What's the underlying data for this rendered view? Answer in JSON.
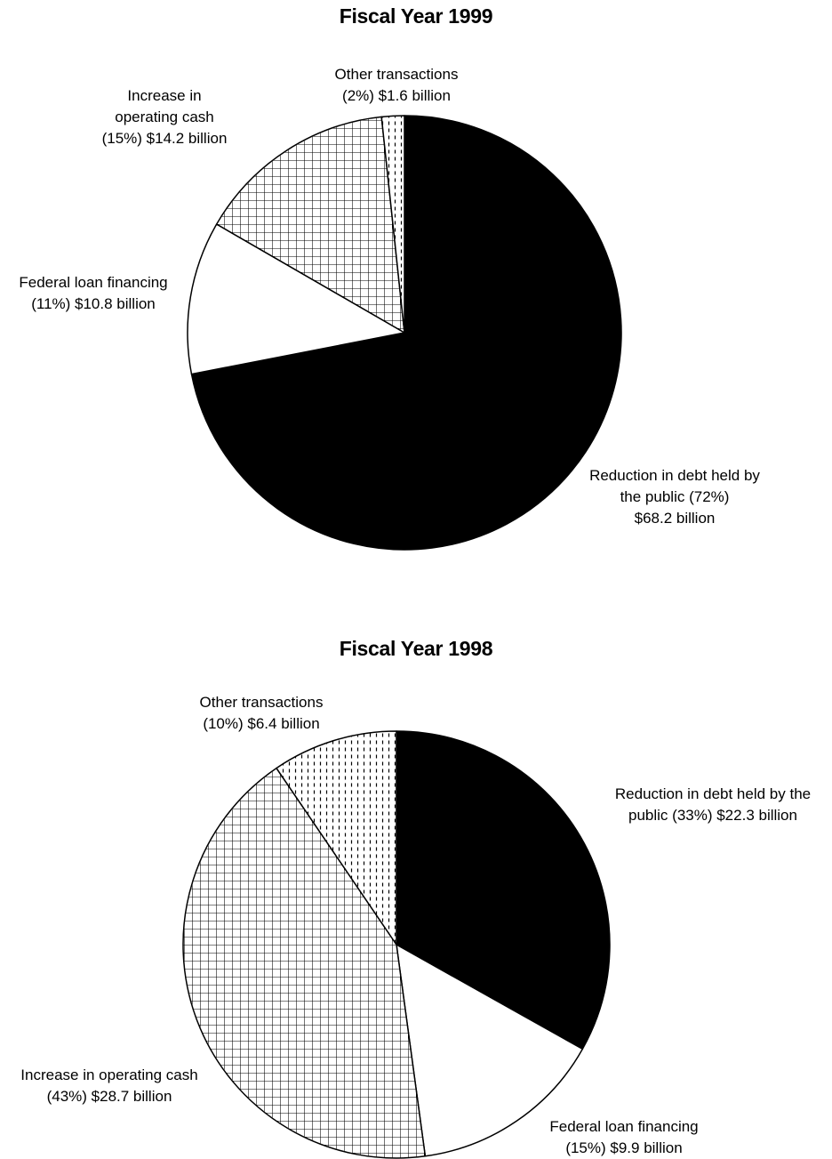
{
  "chart_data": [
    {
      "type": "pie",
      "title": "Fiscal Year 1999",
      "slices": [
        {
          "key": "debt",
          "value": 68.2,
          "percent": 72,
          "fill": "solid-black",
          "label_lines": [
            "Reduction in debt held by",
            "the public (72%)",
            "$68.2 billion"
          ]
        },
        {
          "key": "loan",
          "value": 10.8,
          "percent": 11,
          "fill": "white",
          "label_lines": [
            "Federal loan financing",
            "(11%) $10.8 billion"
          ]
        },
        {
          "key": "cash",
          "value": 14.2,
          "percent": 15,
          "fill": "crosshatch-grid",
          "label_lines": [
            "Increase in",
            "operating cash",
            "(15%) $14.2 billion"
          ]
        },
        {
          "key": "other",
          "value": 1.6,
          "percent": 2,
          "fill": "vertical-dashes",
          "label_lines": [
            "Other transactions",
            "(2%) $1.6 billion"
          ]
        }
      ]
    },
    {
      "type": "pie",
      "title": "Fiscal Year 1998",
      "slices": [
        {
          "key": "debt",
          "value": 22.3,
          "percent": 33,
          "fill": "solid-black",
          "label_lines": [
            "Reduction in debt held by the",
            "public (33%) $22.3 billion"
          ]
        },
        {
          "key": "loan",
          "value": 9.9,
          "percent": 15,
          "fill": "white",
          "label_lines": [
            "Federal loan financing",
            "(15%) $9.9 billion"
          ]
        },
        {
          "key": "cash",
          "value": 28.7,
          "percent": 43,
          "fill": "crosshatch-grid",
          "label_lines": [
            "Increase in operating cash",
            "(43%) $28.7 billion"
          ]
        },
        {
          "key": "other",
          "value": 6.4,
          "percent": 10,
          "fill": "vertical-dashes",
          "label_lines": [
            "Other transactions",
            "(10%) $6.4 billion"
          ]
        }
      ]
    }
  ],
  "colors": {
    "ink": "#000000",
    "paper": "#ffffff"
  }
}
